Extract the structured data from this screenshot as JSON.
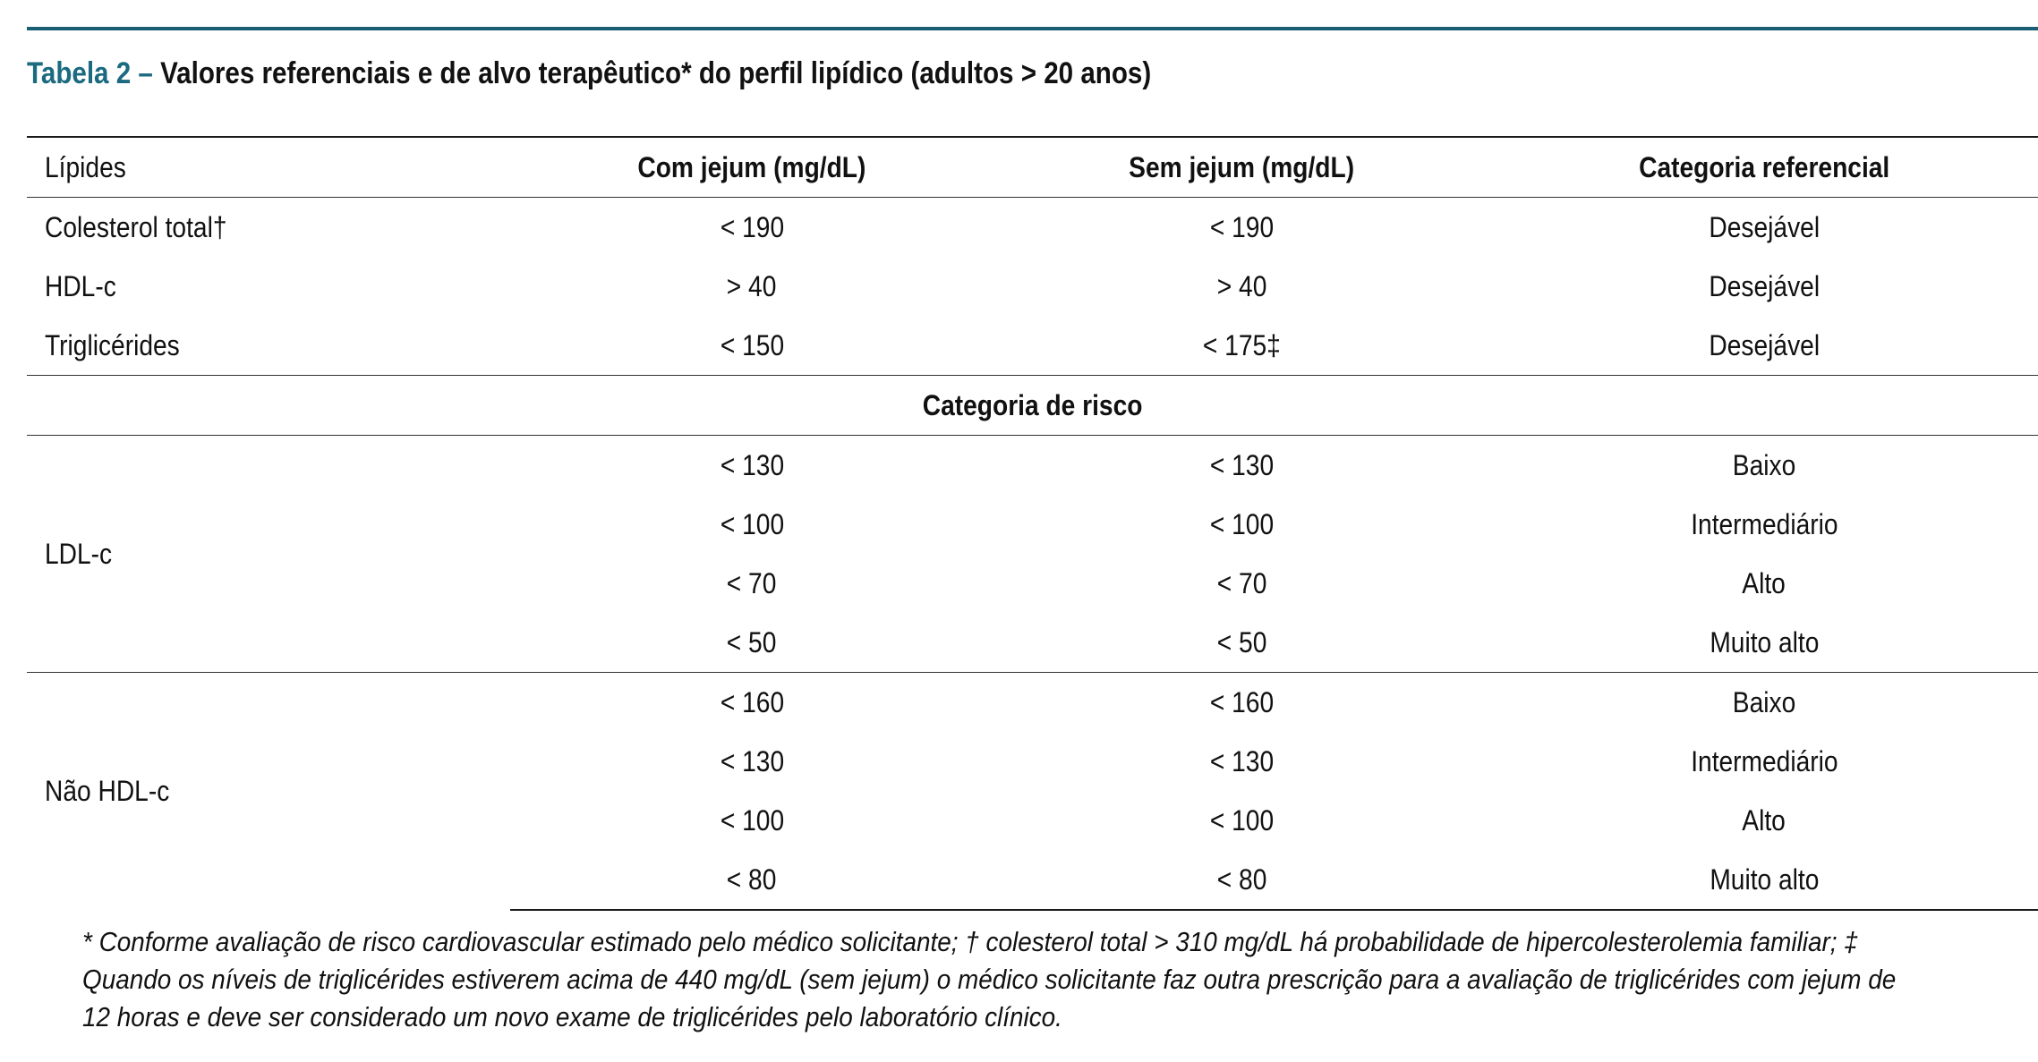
{
  "caption": {
    "label": "Tabela 2 – ",
    "title": "Valores referenciais e de alvo terapêutico* do perfil lipídico (adultos > 20 anos)"
  },
  "colors": {
    "accent": "#1b5e74",
    "caption_label": "#1b6a80"
  },
  "table": {
    "headers": [
      "Lípides",
      "Com jejum (mg/dL)",
      "Sem jejum (mg/dL)",
      "Categoria referencial"
    ],
    "reference_rows": [
      {
        "lipid": "Colesterol total†",
        "fasting": "< 190",
        "non_fasting": "< 190",
        "category": "Desejável"
      },
      {
        "lipid": "HDL-c",
        "fasting": "> 40",
        "non_fasting": "> 40",
        "category": "Desejável"
      },
      {
        "lipid": "Triglicérides",
        "fasting": "< 150",
        "non_fasting": "< 175‡",
        "category": "Desejável"
      }
    ],
    "risk_header": "Categoria de risco",
    "ldl": {
      "label": "LDL-c",
      "rows": [
        {
          "fasting": "< 130",
          "non_fasting": "< 130",
          "category": "Baixo"
        },
        {
          "fasting": "< 100",
          "non_fasting": "< 100",
          "category": "Intermediário"
        },
        {
          "fasting": "< 70",
          "non_fasting": "< 70",
          "category": "Alto"
        },
        {
          "fasting": "< 50",
          "non_fasting": "< 50",
          "category": "Muito alto"
        }
      ]
    },
    "non_hdl": {
      "label": "Não HDL-c",
      "rows": [
        {
          "fasting": "< 160",
          "non_fasting": "< 160",
          "category": "Baixo"
        },
        {
          "fasting": "< 130",
          "non_fasting": "< 130",
          "category": "Intermediário"
        },
        {
          "fasting": "< 100",
          "non_fasting": "< 100",
          "category": "Alto"
        },
        {
          "fasting": "< 80",
          "non_fasting": "< 80",
          "category": "Muito alto"
        }
      ]
    }
  },
  "footnote": {
    "line1": "* Conforme avaliação de risco cardiovascular estimado pelo médico solicitante; † colesterol total > 310 mg/dL há probabilidade de hipercolesterolemia familiar; ‡",
    "line2": "Quando os níveis de triglicérides estiverem acima de 440 mg/dL (sem jejum) o médico solicitante faz outra prescrição para a avaliação de triglicérides com jejum de",
    "line3": "12 horas e deve ser considerado um novo exame de triglicérides pelo laboratório clínico."
  }
}
